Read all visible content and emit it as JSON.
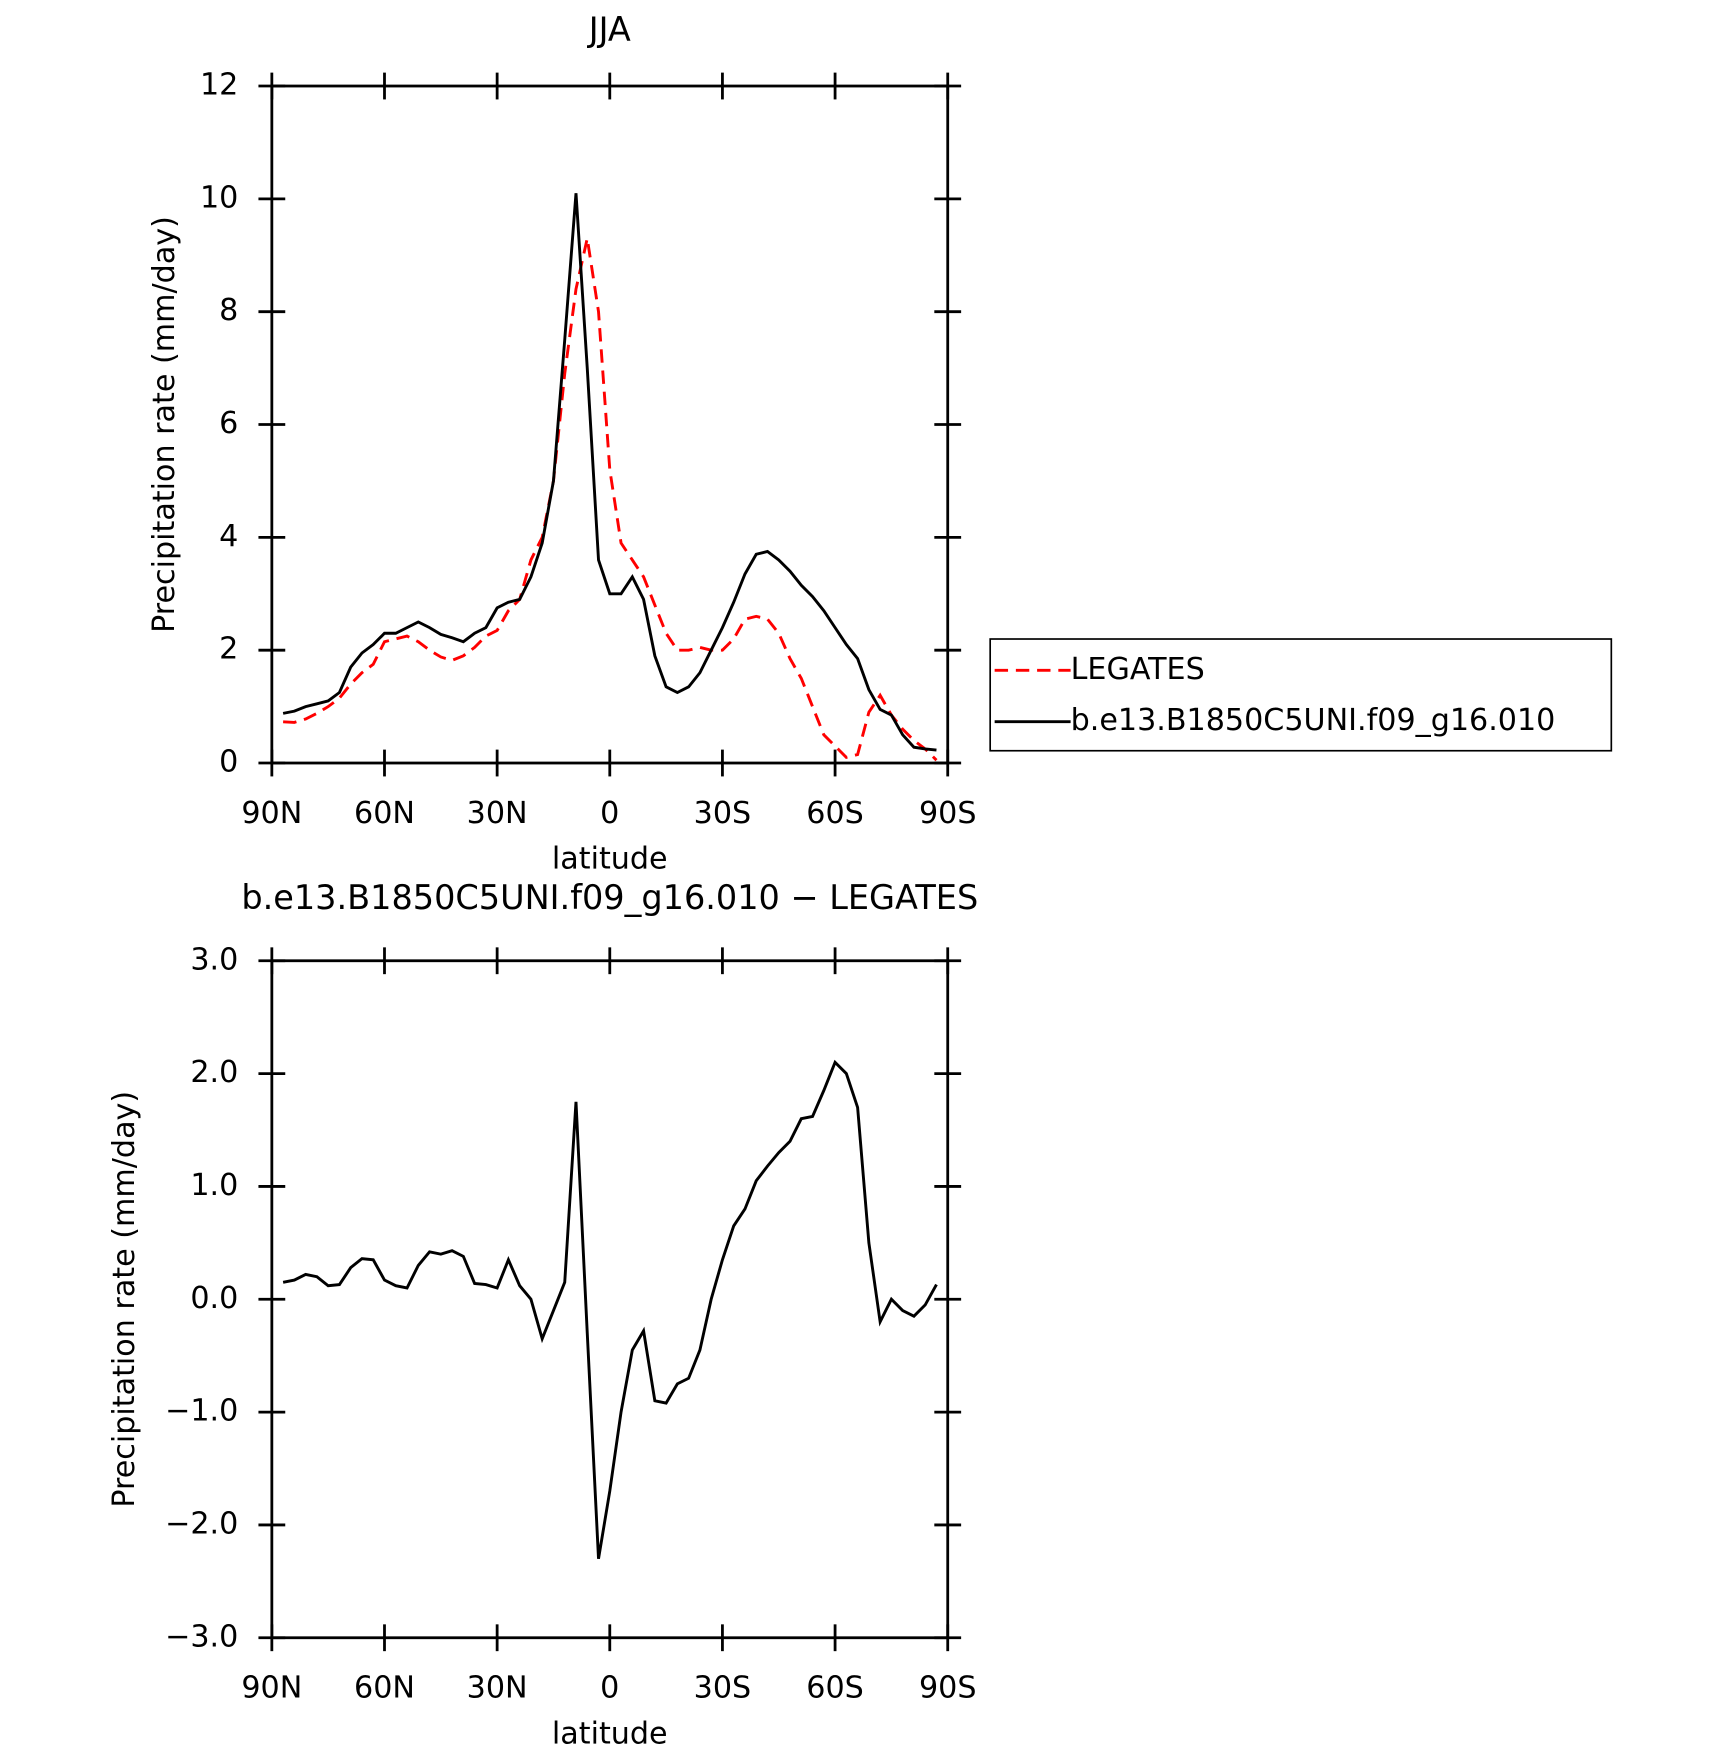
{
  "chart_data": [
    {
      "type": "line",
      "title": "JJA",
      "xlabel": "latitude",
      "ylabel": "Precipitation rate (mm/day)",
      "x": [
        87,
        84,
        81,
        78,
        75,
        72,
        69,
        66,
        63,
        60,
        57,
        54,
        51,
        48,
        45,
        42,
        39,
        36,
        33,
        30,
        27,
        24,
        21,
        18,
        15,
        12,
        9,
        6,
        3,
        0,
        -3,
        -6,
        -9,
        -12,
        -15,
        -18,
        -21,
        -24,
        -27,
        -30,
        -33,
        -36,
        -39,
        -42,
        -45,
        -48,
        -51,
        -54,
        -57,
        -60,
        -63,
        -66,
        -69,
        -72,
        -75,
        -78,
        -81,
        -84,
        -87
      ],
      "series": [
        {
          "name": "LEGATES",
          "color": "#ff0000",
          "dash": true,
          "values": [
            0.73,
            0.72,
            0.78,
            0.88,
            1.0,
            1.15,
            1.4,
            1.6,
            1.75,
            2.15,
            2.2,
            2.25,
            2.15,
            2.0,
            1.88,
            1.82,
            1.9,
            2.05,
            2.25,
            2.35,
            2.7,
            2.9,
            3.6,
            4.0,
            5.0,
            6.9,
            8.4,
            9.3,
            8.0,
            5.2,
            3.9,
            3.6,
            3.3,
            2.8,
            2.3,
            2.0,
            2.0,
            2.05,
            2.0,
            2.0,
            2.2,
            2.55,
            2.6,
            2.55,
            2.3,
            1.85,
            1.5,
            1.0,
            0.5,
            0.3,
            0.1,
            0.15,
            0.9,
            1.2,
            0.85,
            0.6,
            0.4,
            0.25,
            0.05
          ]
        },
        {
          "name": "b.e13.B1850C5UNI.f09_g16.010",
          "color": "#000000",
          "dash": false,
          "values": [
            0.88,
            0.92,
            1.0,
            1.05,
            1.1,
            1.25,
            1.7,
            1.95,
            2.1,
            2.3,
            2.3,
            2.4,
            2.5,
            2.4,
            2.28,
            2.22,
            2.15,
            2.3,
            2.4,
            2.75,
            2.85,
            2.9,
            3.3,
            3.9,
            5.0,
            7.5,
            10.1,
            7.0,
            3.6,
            3.0,
            3.0,
            3.3,
            2.9,
            1.9,
            1.35,
            1.25,
            1.35,
            1.6,
            2.0,
            2.4,
            2.85,
            3.35,
            3.7,
            3.75,
            3.6,
            3.4,
            3.15,
            2.95,
            2.7,
            2.4,
            2.1,
            1.85,
            1.3,
            0.95,
            0.85,
            0.5,
            0.28,
            0.25,
            0.23
          ]
        }
      ],
      "xlim": [
        90,
        -90
      ],
      "xticks": [
        {
          "value": 90,
          "label": "90N"
        },
        {
          "value": 60,
          "label": "60N"
        },
        {
          "value": 30,
          "label": "30N"
        },
        0,
        {
          "value": -30,
          "label": "30S"
        },
        {
          "value": -60,
          "label": "60S"
        },
        {
          "value": -90,
          "label": "90S"
        }
      ],
      "ylim": [
        0,
        12
      ],
      "yticks": [
        0,
        2,
        4,
        6,
        8,
        10,
        12
      ],
      "legend": "outside right"
    },
    {
      "type": "line",
      "title": "b.e13.B1850C5UNI.f09_g16.010 − LEGATES",
      "xlabel": "latitude",
      "ylabel": "Precipitation rate (mm/day)",
      "x": [
        87,
        84,
        81,
        78,
        75,
        72,
        69,
        66,
        63,
        60,
        57,
        54,
        51,
        48,
        45,
        42,
        39,
        36,
        33,
        30,
        27,
        24,
        21,
        18,
        15,
        12,
        9,
        6,
        3,
        0,
        -3,
        -6,
        -9,
        -12,
        -15,
        -18,
        -21,
        -24,
        -27,
        -30,
        -33,
        -36,
        -39,
        -42,
        -45,
        -48,
        -51,
        -54,
        -57,
        -60,
        -63,
        -66,
        -69,
        -72,
        -75,
        -78,
        -81,
        -84,
        -87
      ],
      "series": [
        {
          "color": "#000000",
          "dash": false,
          "values": [
            0.15,
            0.17,
            0.22,
            0.2,
            0.12,
            0.13,
            0.28,
            0.36,
            0.35,
            0.17,
            0.12,
            0.1,
            0.3,
            0.42,
            0.4,
            0.43,
            0.38,
            0.14,
            0.13,
            0.1,
            0.35,
            0.12,
            0.0,
            -0.35,
            -0.1,
            0.15,
            1.75,
            -0.3,
            -2.3,
            -1.7,
            -1.0,
            -0.45,
            -0.28,
            -0.9,
            -0.92,
            -0.75,
            -0.7,
            -0.45,
            0.0,
            0.35,
            0.65,
            0.8,
            1.05,
            1.18,
            1.3,
            1.4,
            1.6,
            1.62,
            1.85,
            2.1,
            2.0,
            1.7,
            0.5,
            -0.2,
            0.0,
            -0.1,
            -0.15,
            -0.05,
            0.13
          ]
        }
      ],
      "xlim": [
        90,
        -90
      ],
      "xticks": [
        {
          "value": 90,
          "label": "90N"
        },
        {
          "value": 60,
          "label": "60N"
        },
        {
          "value": 30,
          "label": "30N"
        },
        0,
        {
          "value": -30,
          "label": "30S"
        },
        {
          "value": -60,
          "label": "60S"
        },
        {
          "value": -90,
          "label": "90S"
        }
      ],
      "ylim": [
        -3,
        3
      ],
      "yticks": [
        {
          "value": -3,
          "label": "−3.0"
        },
        {
          "value": -2,
          "label": "−2.0"
        },
        {
          "value": -1,
          "label": "−1.0"
        },
        {
          "value": 0,
          "label": "0.0"
        },
        {
          "value": 1,
          "label": "1.0"
        },
        {
          "value": 2,
          "label": "2.0"
        },
        {
          "value": 3,
          "label": "3.0"
        }
      ]
    }
  ]
}
